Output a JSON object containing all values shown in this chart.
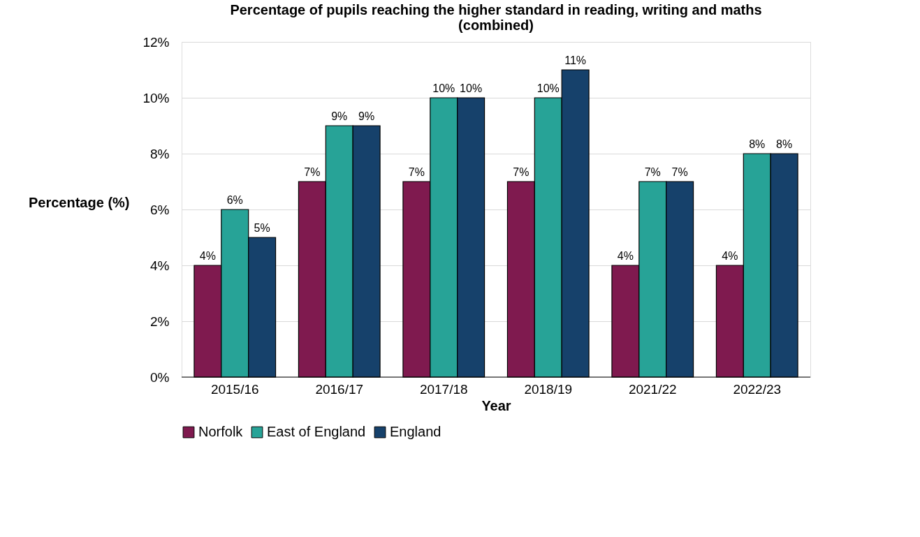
{
  "chart_data": {
    "type": "bar",
    "title": "Percentage of pupils reaching the higher standard in reading, writing and maths (combined)",
    "xlabel": "Year",
    "ylabel": "Percentage (%)",
    "categories": [
      "2015/16",
      "2016/17",
      "2017/18",
      "2018/19",
      "2021/22",
      "2022/23"
    ],
    "series": [
      {
        "name": "Norfolk",
        "color": "#7f1a4f",
        "values": [
          4,
          7,
          7,
          7,
          4,
          4
        ],
        "value_labels": [
          "4%",
          "7%",
          "7%",
          "7%",
          "4%",
          "4%"
        ]
      },
      {
        "name": "East of England",
        "color": "#27a397",
        "values": [
          6,
          9,
          10,
          10,
          7,
          8
        ],
        "value_labels": [
          "6%",
          "9%",
          "10%",
          "10%",
          "7%",
          "8%"
        ]
      },
      {
        "name": "England",
        "color": "#16416b",
        "values": [
          5,
          9,
          10,
          11,
          7,
          8
        ],
        "value_labels": [
          "5%",
          "9%",
          "10%",
          "11%",
          "7%",
          "8%"
        ]
      }
    ],
    "ylim": [
      0,
      12
    ],
    "yticks": [
      {
        "value": 0,
        "label": "0%"
      },
      {
        "value": 2,
        "label": "2%"
      },
      {
        "value": 4,
        "label": "4%"
      },
      {
        "value": 6,
        "label": "6%"
      },
      {
        "value": 8,
        "label": "8%"
      },
      {
        "value": 10,
        "label": "10%"
      },
      {
        "value": 12,
        "label": "12%"
      }
    ],
    "grid": "y",
    "legend": "bottom"
  }
}
